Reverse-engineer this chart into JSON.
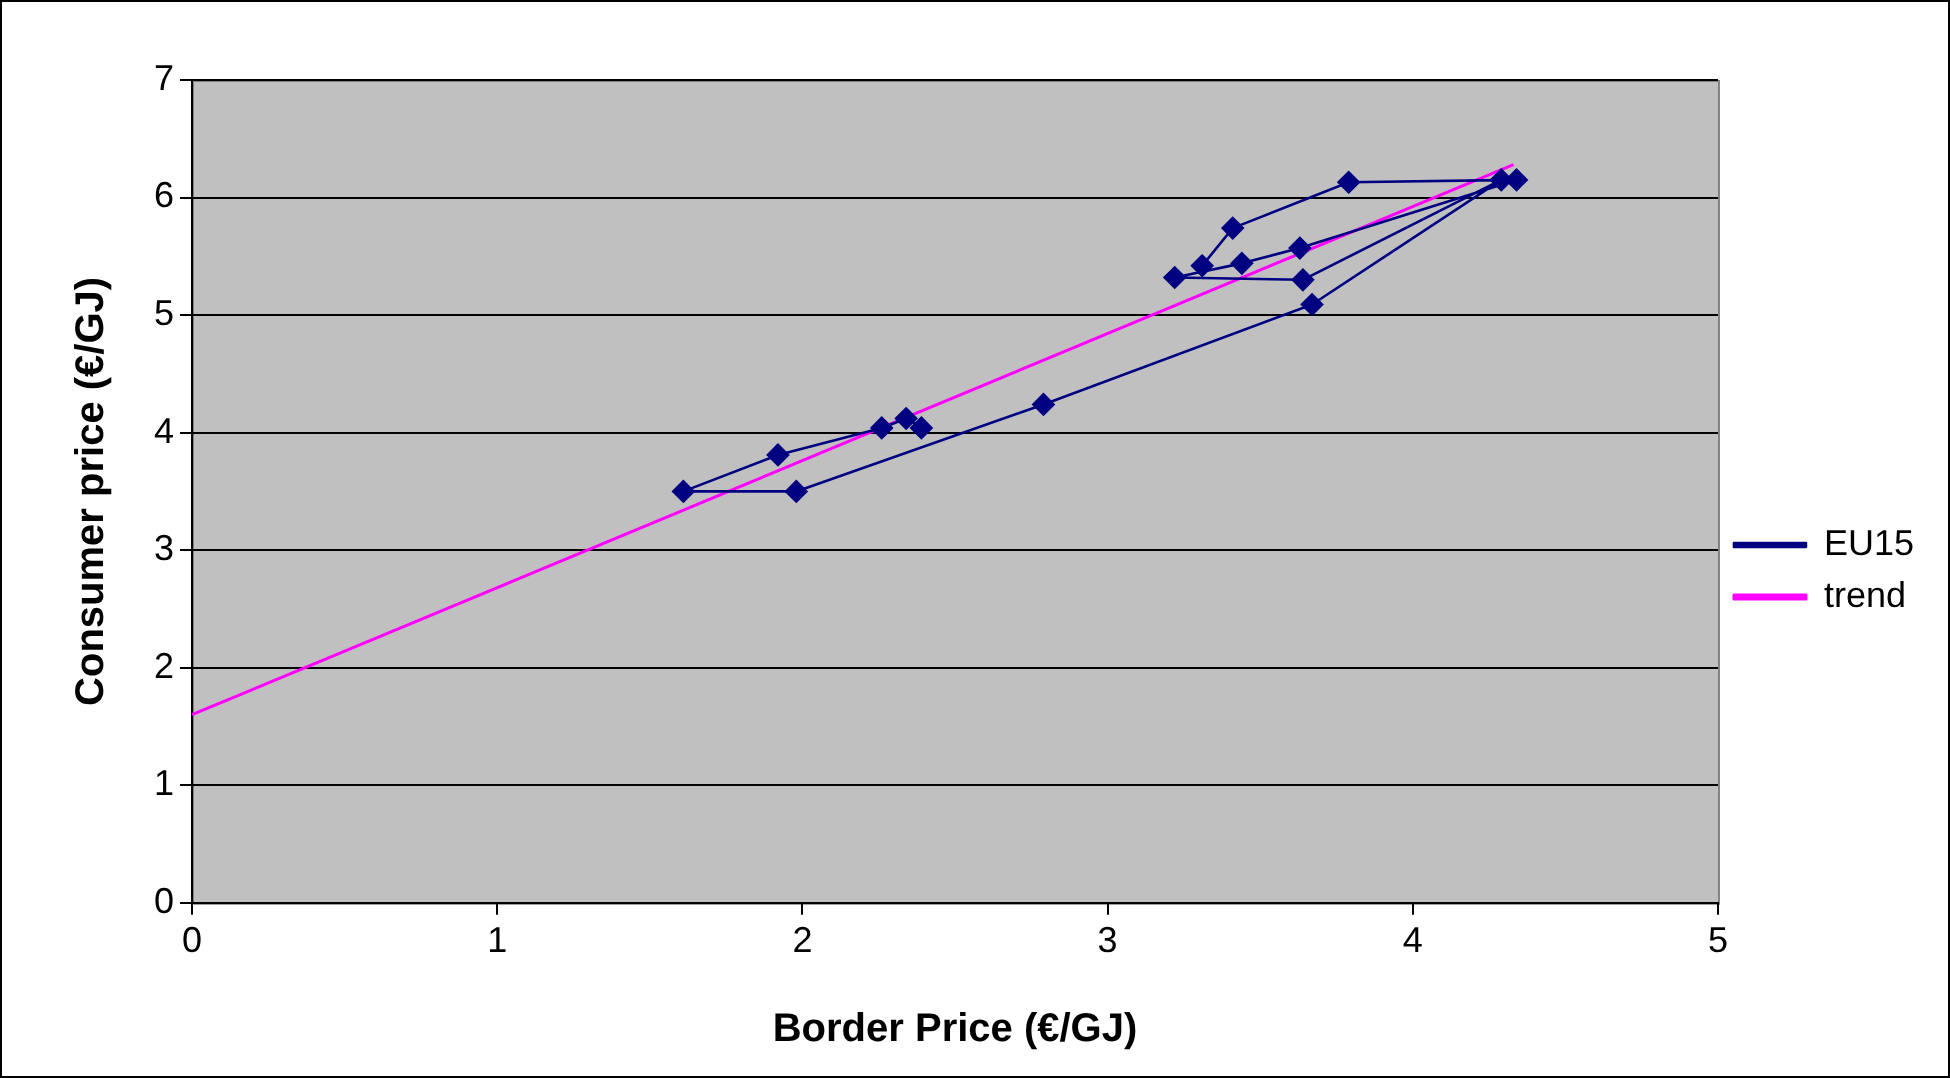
{
  "chart_data": {
    "type": "line",
    "xlabel": "Border Price (€/GJ)",
    "ylabel": "Consumer price (€/GJ)",
    "xlim": [
      0,
      5
    ],
    "xticks": [
      0,
      1,
      2,
      3,
      4,
      5
    ],
    "ylim": [
      0,
      7
    ],
    "yticks": [
      0,
      1,
      2,
      3,
      4,
      5,
      6,
      7
    ],
    "grid": "y",
    "legend": "right",
    "series": [
      {
        "name": "EU15",
        "color": "#000080",
        "marker": "diamond",
        "x": [
          2.39,
          2.34,
          2.26,
          1.92,
          1.61,
          1.98,
          2.79,
          3.67,
          4.29,
          3.64,
          3.22,
          3.44,
          3.63,
          4.34,
          3.79,
          3.41,
          3.31
        ],
        "values": [
          4.04,
          4.12,
          4.04,
          3.81,
          3.5,
          3.5,
          4.24,
          5.09,
          6.15,
          5.3,
          5.32,
          5.44,
          5.57,
          6.15,
          6.13,
          5.74,
          5.42
        ]
      },
      {
        "name": "trend",
        "color": "#ff00ff",
        "marker": "none",
        "x": [
          0,
          4.33
        ],
        "values": [
          1.6,
          6.28
        ]
      }
    ]
  }
}
